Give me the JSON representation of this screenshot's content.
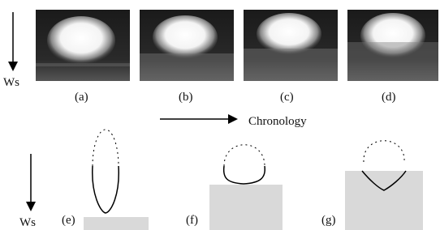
{
  "top_axis_label": "Ws",
  "photo_labels": [
    "(a)",
    "(b)",
    "(c)",
    "(d)"
  ],
  "arrow_label": "Chronology",
  "bottom_axis_label": "Ws",
  "diagram_labels": [
    "(e)",
    "(f)",
    "(g)"
  ]
}
